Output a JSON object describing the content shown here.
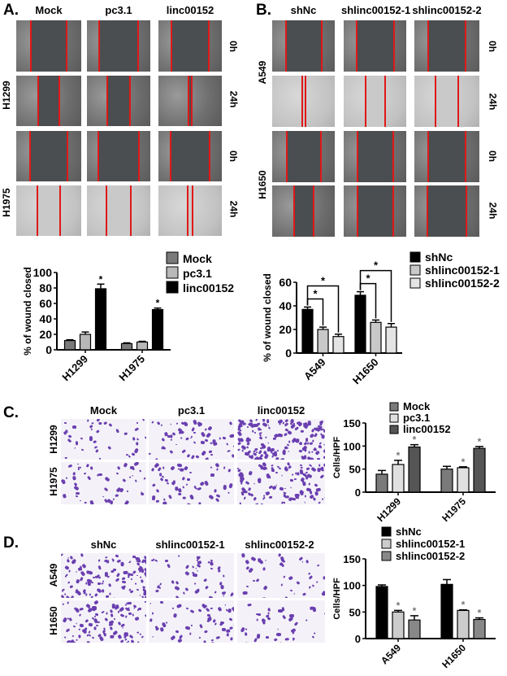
{
  "panels": {
    "A": {
      "label": "A.",
      "columns": [
        "Mock",
        "pc3.1",
        "linc00152"
      ],
      "rows": [
        "H1299",
        "H1975"
      ],
      "times": [
        "0h",
        "24h",
        "0h",
        "24h"
      ]
    },
    "B": {
      "label": "B.",
      "columns": [
        "shNc",
        "shlinc00152-1",
        "shlinc00152-2"
      ],
      "rows": [
        "A549",
        "H1650"
      ],
      "times": [
        "0h",
        "24h",
        "0h",
        "24h"
      ]
    },
    "C": {
      "label": "C.",
      "columns": [
        "Mock",
        "pc3.1",
        "linc00152"
      ],
      "rows": [
        "H1299",
        "H1975"
      ]
    },
    "D": {
      "label": "D.",
      "columns": [
        "shNc",
        "shlinc00152-1",
        "shlinc00152-2"
      ],
      "rows": [
        "A549",
        "H1650"
      ]
    }
  },
  "colors": {
    "wound_line": "#e01818",
    "crystal_violet": "#6a3fb0"
  },
  "chart_data": [
    {
      "id": "A",
      "type": "bar",
      "ylabel": "% of wound closed",
      "ylim": [
        0,
        100
      ],
      "yticks": [
        0,
        20,
        40,
        60,
        80,
        100
      ],
      "categories": [
        "H1299",
        "H1975"
      ],
      "legend": "top-right",
      "series": [
        {
          "name": "Mock",
          "values": [
            12,
            8
          ],
          "errors": [
            1,
            1
          ],
          "sig": [
            "",
            ""
          ],
          "color": "#7a7a7a"
        },
        {
          "name": "pc3.1",
          "values": [
            20,
            10
          ],
          "errors": [
            3,
            1
          ],
          "sig": [
            "",
            ""
          ],
          "color": "#b8b8b8"
        },
        {
          "name": "linc00152",
          "values": [
            79,
            52
          ],
          "errors": [
            6,
            2
          ],
          "sig": [
            "*",
            "*"
          ],
          "color": "#000000"
        }
      ]
    },
    {
      "id": "B",
      "type": "bar",
      "ylabel": "% of wound closed",
      "ylim": [
        0,
        60
      ],
      "yticks": [
        0,
        20,
        40,
        60
      ],
      "categories": [
        "A549",
        "H1650"
      ],
      "legend": "top-right",
      "series": [
        {
          "name": "shNc",
          "values": [
            37,
            49
          ],
          "errors": [
            2,
            3
          ],
          "sig": [
            "",
            ""
          ],
          "color": "#000000"
        },
        {
          "name": "shlinc00152-1",
          "values": [
            20,
            26
          ],
          "errors": [
            2,
            2
          ],
          "sig": [
            "*",
            "*"
          ],
          "color": "#c8c8c8"
        },
        {
          "name": "shlinc00152-2",
          "values": [
            14,
            22
          ],
          "errors": [
            2,
            3
          ],
          "sig": [
            "*",
            "*"
          ],
          "color": "#e4e4e4"
        }
      ],
      "bracket_label": "*"
    },
    {
      "id": "C",
      "type": "bar",
      "ylabel": "Cells/HPF",
      "ylim": [
        0,
        150
      ],
      "yticks": [
        0,
        50,
        100,
        150
      ],
      "categories": [
        "H1299",
        "H1975"
      ],
      "legend": "top",
      "series": [
        {
          "name": "Mock",
          "values": [
            39,
            50
          ],
          "errors": [
            8,
            6
          ],
          "sig": [
            "",
            ""
          ],
          "color": "#7a7a7a"
        },
        {
          "name": "pc3.1",
          "values": [
            60,
            53
          ],
          "errors": [
            9,
            2
          ],
          "sig": [
            "*",
            "*"
          ],
          "color": "#e0e0e0"
        },
        {
          "name": "linc00152",
          "values": [
            98,
            95
          ],
          "errors": [
            5,
            4
          ],
          "sig": [
            "*",
            "*"
          ],
          "color": "#555555"
        }
      ]
    },
    {
      "id": "D",
      "type": "bar",
      "ylabel": "Cells/HPF",
      "ylim": [
        0,
        150
      ],
      "yticks": [
        0,
        50,
        100,
        150
      ],
      "categories": [
        "A549",
        "H1650"
      ],
      "legend": "top",
      "series": [
        {
          "name": "shNc",
          "values": [
            98,
            102
          ],
          "errors": [
            3,
            9
          ],
          "sig": [
            "",
            ""
          ],
          "color": "#000000"
        },
        {
          "name": "shlinc00152-1",
          "values": [
            50,
            53
          ],
          "errors": [
            3,
            1
          ],
          "sig": [
            "*",
            "*"
          ],
          "color": "#cccccc"
        },
        {
          "name": "shlinc00152-2",
          "values": [
            35,
            36
          ],
          "errors": [
            8,
            3
          ],
          "sig": [
            "*",
            "*"
          ],
          "color": "#888888"
        }
      ]
    }
  ]
}
